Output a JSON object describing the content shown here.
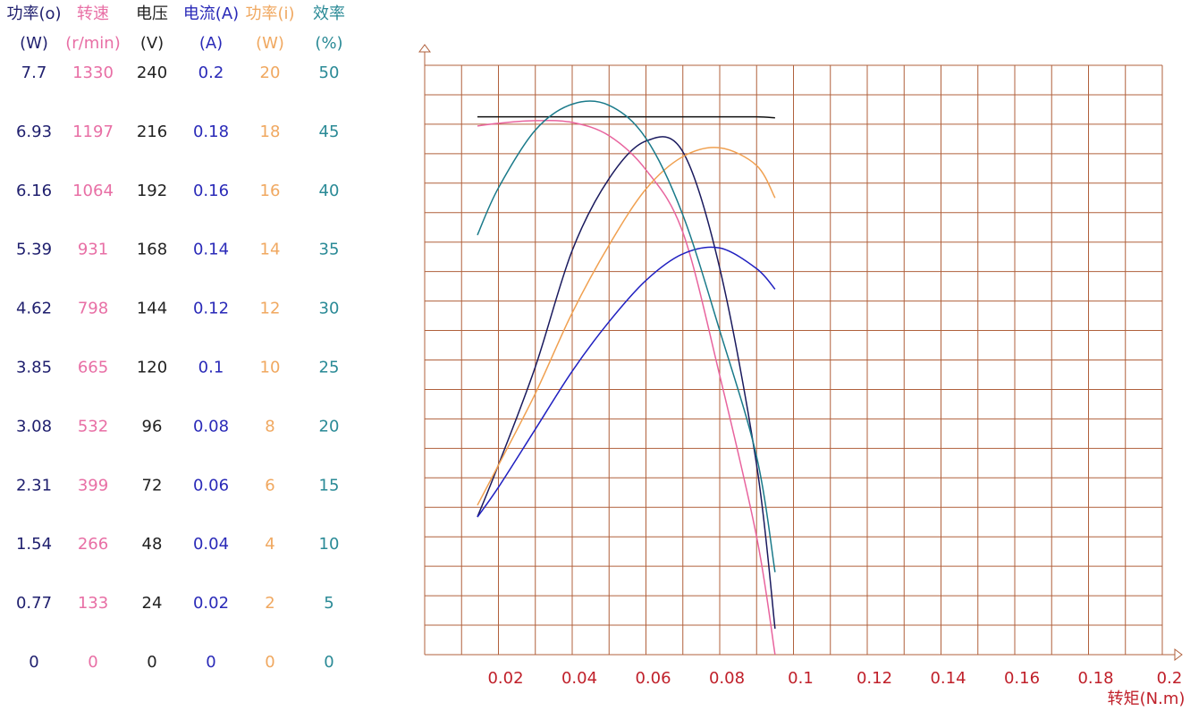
{
  "chart_data": {
    "type": "line",
    "x_label": "转矩(N.m)",
    "xlim": [
      0,
      0.2
    ],
    "xticks": [
      0.02,
      0.04,
      0.06,
      0.08,
      0.1,
      0.12,
      0.14,
      0.16,
      0.18,
      0.2
    ],
    "x": [
      0.0143,
      0.02,
      0.03,
      0.04,
      0.05,
      0.06,
      0.07,
      0.08,
      0.09,
      0.095
    ],
    "grid": true,
    "series": [
      {
        "name": "功率(o)",
        "unit": "(W)",
        "color": "#1a1a5e",
        "label_color": "#1f1f6e",
        "ylim": [
          0,
          7.7
        ],
        "yticks": [
          0,
          0.77,
          1.54,
          2.31,
          3.08,
          3.85,
          4.62,
          5.39,
          6.16,
          6.93,
          7.7
        ],
        "values": [
          1.8,
          2.48,
          3.76,
          5.28,
          6.22,
          6.71,
          6.57,
          5.05,
          2.48,
          0.34
        ]
      },
      {
        "name": "转速",
        "unit": "(r/min)",
        "color": "#e8649e",
        "label_color": "#e86fa5",
        "ylim": [
          0,
          1330
        ],
        "yticks": [
          0,
          133,
          266,
          399,
          532,
          665,
          798,
          931,
          1064,
          1197,
          1330
        ],
        "values": [
          1193,
          1199,
          1205,
          1201,
          1171,
          1094,
          953,
          630,
          266,
          0
        ]
      },
      {
        "name": "电压",
        "unit": "(V)",
        "color": "#111111",
        "label_color": "#222222",
        "ylim": [
          0,
          240
        ],
        "yticks": [
          0,
          24,
          48,
          72,
          96,
          120,
          144,
          168,
          192,
          216,
          240
        ],
        "values": [
          219,
          219,
          219,
          219,
          219,
          219,
          219,
          219,
          219,
          218.6
        ]
      },
      {
        "name": "电流(A)",
        "unit": "(A)",
        "color": "#2020c0",
        "label_color": "#2a2ab8",
        "ylim": [
          0,
          0.2
        ],
        "yticks": [
          0,
          0.02,
          0.04,
          0.06,
          0.08,
          0.1,
          0.12,
          0.14,
          0.16,
          0.18,
          0.2
        ],
        "values": [
          0.0467,
          0.0568,
          0.0765,
          0.0962,
          0.113,
          0.127,
          0.136,
          0.138,
          0.131,
          0.124
        ]
      },
      {
        "name": "功率(i)",
        "unit": "(W)",
        "color": "#f0a050",
        "label_color": "#f0a860",
        "ylim": [
          0,
          20
        ],
        "yticks": [
          0,
          2,
          4,
          6,
          8,
          10,
          12,
          14,
          16,
          18,
          20
        ],
        "values": [
          5.07,
          6.43,
          8.86,
          11.6,
          13.9,
          15.8,
          16.9,
          17.2,
          16.6,
          15.5
        ]
      },
      {
        "name": "效率",
        "unit": "(%)",
        "color": "#1a7a8a",
        "label_color": "#2a8a96",
        "ylim": [
          0,
          50
        ],
        "yticks": [
          0,
          5,
          10,
          15,
          20,
          25,
          30,
          35,
          40,
          45,
          50
        ],
        "values": [
          35.6,
          39.6,
          44.5,
          46.7,
          46.6,
          43.8,
          37.3,
          27.5,
          16.8,
          7.0
        ]
      }
    ]
  }
}
